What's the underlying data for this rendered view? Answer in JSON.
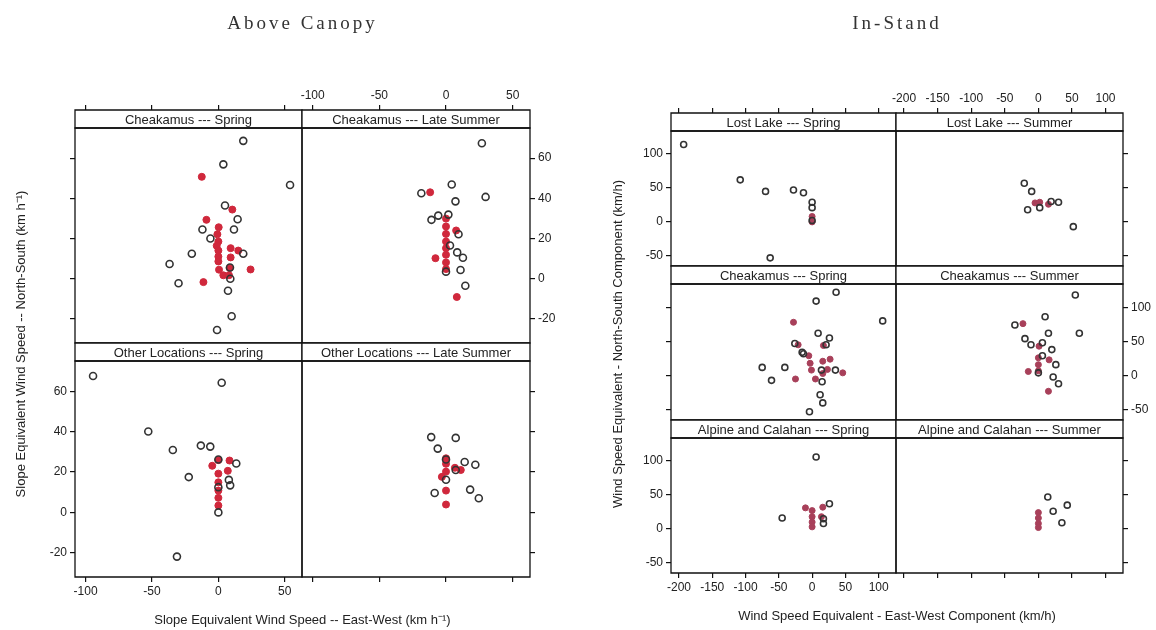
{
  "chart_data": [
    {
      "type": "scatter",
      "title": "Cheakamus --- Spring",
      "annotations": [
        "Above Canopy"
      ],
      "xlim": [
        -108,
        63
      ],
      "ylim": [
        -32,
        75
      ],
      "xticks": [
        -100,
        -50,
        0,
        50
      ],
      "yticks": [
        -20,
        0,
        20,
        40,
        60
      ],
      "tick_labels": false,
      "marker": "circle",
      "series": [
        {
          "color": "#333333",
          "x": [
            18.75,
            3.75,
            54,
            5,
            14.5,
            -12,
            11.75,
            -6,
            18.75,
            -20,
            -36.75,
            -30,
            8.75,
            9,
            7.25,
            10,
            -1
          ],
          "values": [
            68.6,
            56.9,
            46.6,
            36.4,
            29.6,
            24.5,
            24.5,
            20,
            12.4,
            12.4,
            7.3,
            -2.3,
            5.6,
            0,
            -6,
            -18.7,
            -25.5
          ]
        },
        {
          "color": "#d0283c",
          "x": [
            -12.5,
            10.5,
            -9,
            0.25,
            -0.75,
            0,
            -1.25,
            0,
            0,
            0,
            9.25,
            9.25,
            15,
            8.5,
            0.5,
            3.75,
            8,
            24.25,
            -11.25
          ],
          "values": [
            50.7,
            34.4,
            29.3,
            25.6,
            22.1,
            18.5,
            16.4,
            14,
            11,
            8.6,
            15.2,
            10.6,
            14,
            5.3,
            4.5,
            1.7,
            1.7,
            4.6,
            -1.7
          ]
        }
      ]
    },
    {
      "type": "scatter",
      "title": "Cheakamus --- Late Summer",
      "xlim": [
        -108,
        63
      ],
      "ylim": [
        -32,
        75
      ],
      "xticks": [
        -100,
        -50,
        0,
        50
      ],
      "yticks": [
        -20,
        0,
        20,
        40,
        60
      ],
      "marker": "circle",
      "series": [
        {
          "color": "#333333",
          "x": [
            26.9,
            4.3,
            -18.5,
            29.7,
            7.1,
            -5.8,
            -10.9,
            1.8,
            9.4,
            3,
            8.4,
            12.7,
            10.9,
            0,
            14.5
          ],
          "values": [
            67.4,
            46.9,
            42.5,
            40.7,
            38.5,
            31.4,
            29.3,
            31.9,
            22.1,
            16.5,
            13.1,
            10.4,
            4.3,
            3.5,
            -3.5
          ]
        },
        {
          "color": "#d0283c",
          "x": [
            -11.9,
            0,
            0,
            0,
            7.6,
            0,
            0,
            0,
            0,
            0,
            -7.9,
            8.1
          ],
          "values": [
            43,
            29.9,
            26,
            22.3,
            24,
            18.5,
            15.2,
            11.9,
            8.1,
            4.8,
            10.2,
            -9.1
          ]
        }
      ]
    },
    {
      "type": "scatter",
      "title": "Other Locations --- Spring",
      "xlabel": "Slope Equivalent Wind Speed -- East-West (km h⁻¹)",
      "ylabel": "Slope Equivalent Wind Speed -- North-South (km h⁻¹)",
      "xlim": [
        -108,
        63
      ],
      "ylim": [
        -32,
        75
      ],
      "xticks": [
        -100,
        -50,
        0,
        50
      ],
      "yticks": [
        -20,
        0,
        20,
        40,
        60
      ],
      "marker": "circle",
      "series": [
        {
          "color": "#333333",
          "x": [
            -94.4,
            2.5,
            -52.8,
            -34.3,
            -13.2,
            -6.1,
            -22.3,
            13.5,
            7.9,
            8.9,
            0,
            0,
            -31.2,
            0
          ],
          "values": [
            67.6,
            64.2,
            40.1,
            30.9,
            33.1,
            32.6,
            17.5,
            24.2,
            16.1,
            13.4,
            26.2,
            0,
            -21.9,
            12.5
          ]
        },
        {
          "color": "#d0283c",
          "x": [
            0,
            -4.6,
            8.4,
            7.1,
            0,
            0,
            0,
            0,
            0
          ],
          "values": [
            25.9,
            23.1,
            25.7,
            20.6,
            19.2,
            14.9,
            10.8,
            7.2,
            3.4
          ]
        }
      ]
    },
    {
      "type": "scatter",
      "title": "Other Locations --- Late Summer",
      "xlim": [
        -108,
        63
      ],
      "ylim": [
        -32,
        75
      ],
      "xticks": [
        -100,
        -50,
        0,
        50
      ],
      "yticks": [
        -20,
        0,
        20,
        40,
        60
      ],
      "tick_labels": false,
      "marker": "circle",
      "series": [
        {
          "color": "#333333",
          "x": [
            -11.1,
            7.3,
            -6.2,
            14,
            22,
            7.3,
            0,
            -8.5,
            18.1,
            24.6,
            0
          ],
          "values": [
            37.3,
            36.9,
            31.6,
            25,
            23.6,
            21,
            16.2,
            9.6,
            11.3,
            7,
            26.2
          ]
        },
        {
          "color": "#d0283c",
          "x": [
            0,
            0,
            6.7,
            11.1,
            0,
            -3.1,
            0,
            0
          ],
          "values": [
            26.8,
            24.1,
            22.1,
            21,
            20.2,
            17.6,
            10.8,
            3.9
          ]
        }
      ]
    },
    {
      "type": "scatter",
      "title": "Lost Lake --- Spring",
      "annotations": [
        "In-Stand"
      ],
      "xlim": [
        -212,
        126
      ],
      "ylim": [
        -65,
        134
      ],
      "xticks": [
        -200,
        -150,
        -100,
        -50,
        0,
        50,
        100
      ],
      "yticks": [
        -50,
        0,
        50,
        100
      ],
      "tick_labels": "y",
      "marker": "circle",
      "series": [
        {
          "color": "#333333",
          "x": [
            -193,
            -108,
            -70,
            -28,
            -13,
            0,
            0,
            -63,
            0
          ],
          "values": [
            114,
            62,
            45,
            47,
            43,
            29,
            21,
            -53,
            2
          ]
        },
        {
          "color": "#a8405a",
          "x": [
            0,
            0
          ],
          "values": [
            8,
            0
          ]
        }
      ]
    },
    {
      "type": "scatter",
      "title": "Lost Lake --- Summer",
      "xlim": [
        -212,
        126
      ],
      "ylim": [
        -65,
        134
      ],
      "xticks": [
        -200,
        -150,
        -100,
        -50,
        0,
        50,
        100
      ],
      "yticks": [
        -50,
        0,
        50,
        100
      ],
      "tick_labels": "x",
      "marker": "circle",
      "series": [
        {
          "color": "#333333",
          "x": [
            -21,
            -10,
            -16,
            2,
            19,
            30,
            52
          ],
          "values": [
            57,
            45,
            18,
            21,
            30,
            29,
            -7
          ]
        },
        {
          "color": "#a8405a",
          "x": [
            -5,
            2,
            15
          ],
          "values": [
            28,
            29,
            26
          ]
        }
      ]
    },
    {
      "type": "scatter",
      "title": "Cheakamus --- Spring",
      "xlim": [
        -212,
        126
      ],
      "ylim": [
        -65,
        134
      ],
      "xticks": [
        -200,
        -150,
        -100,
        -50,
        0,
        50,
        100
      ],
      "yticks": [
        -50,
        0,
        50,
        100
      ],
      "tick_labels": false,
      "marker": "circle",
      "series": [
        {
          "color": "#333333",
          "x": [
            36,
            6,
            106,
            9,
            26,
            21,
            -26,
            -15,
            -13,
            -75,
            -41,
            -61,
            35,
            14,
            15,
            12,
            16,
            -4
          ],
          "values": [
            122,
            109,
            80,
            62,
            55,
            45,
            47,
            34,
            32,
            12,
            12,
            -7,
            8,
            8,
            -9,
            -28,
            -40,
            -53
          ]
        },
        {
          "color": "#a8405a",
          "x": [
            -28,
            -21,
            17,
            -5,
            -3,
            -1,
            16,
            16,
            27,
            23,
            46,
            -25,
            5
          ],
          "values": [
            78,
            45,
            44,
            29,
            18,
            8,
            21,
            3,
            24,
            9,
            4,
            -5,
            -5
          ]
        }
      ]
    },
    {
      "type": "scatter",
      "title": "Cheakamus --- Summer",
      "xlim": [
        -212,
        126
      ],
      "ylim": [
        -65,
        134
      ],
      "xticks": [
        -200,
        -150,
        -100,
        -50,
        0,
        50,
        100
      ],
      "yticks": [
        -50,
        0,
        50,
        100
      ],
      "tick_labels": "y",
      "marker": "circle",
      "series": [
        {
          "color": "#333333",
          "x": [
            55,
            10,
            -35,
            61,
            15,
            -20,
            -11,
            6,
            20,
            6,
            0,
            26,
            22,
            30
          ],
          "values": [
            118,
            86,
            74,
            62,
            62,
            54,
            45,
            48,
            38,
            29,
            4,
            16,
            -2,
            -12
          ]
        },
        {
          "color": "#a8405a",
          "x": [
            -23,
            1,
            0,
            0,
            0,
            -15,
            16,
            15
          ],
          "values": [
            76,
            43,
            26,
            16,
            7,
            6,
            23,
            -23
          ]
        }
      ]
    },
    {
      "type": "scatter",
      "title": "Alpine and Calahan --- Spring",
      "xlabel": "Wind Speed Equivalent - East-West Component (km/h)",
      "ylabel": "Wind Speed Equivalent - North-South Component (km/h)",
      "xlim": [
        -212,
        126
      ],
      "ylim": [
        -65,
        134
      ],
      "xticks": [
        -200,
        -150,
        -100,
        -50,
        0,
        50,
        100
      ],
      "yticks": [
        -50,
        0,
        50,
        100
      ],
      "marker": "circle",
      "series": [
        {
          "color": "#333333",
          "x": [
            6,
            26,
            -45,
            17,
            17
          ],
          "values": [
            106,
            37,
            16,
            15,
            8
          ]
        },
        {
          "color": "#a8405a",
          "x": [
            -10,
            0,
            0,
            0,
            0,
            16,
            14
          ],
          "values": [
            31,
            27,
            18,
            10,
            3,
            32,
            18
          ]
        }
      ]
    },
    {
      "type": "scatter",
      "title": "Alpine and Calahan --- Summer",
      "xlim": [
        -212,
        126
      ],
      "ylim": [
        -65,
        134
      ],
      "xticks": [
        -200,
        -150,
        -100,
        -50,
        0,
        50,
        100
      ],
      "yticks": [
        -50,
        0,
        50,
        100
      ],
      "tick_labels": false,
      "marker": "circle",
      "series": [
        {
          "color": "#333333",
          "x": [
            14,
            43,
            35,
            22
          ],
          "values": [
            47,
            35,
            9,
            26
          ]
        },
        {
          "color": "#a8405a",
          "x": [
            0,
            0,
            0,
            0
          ],
          "values": [
            24,
            16,
            8,
            2
          ]
        }
      ]
    }
  ]
}
